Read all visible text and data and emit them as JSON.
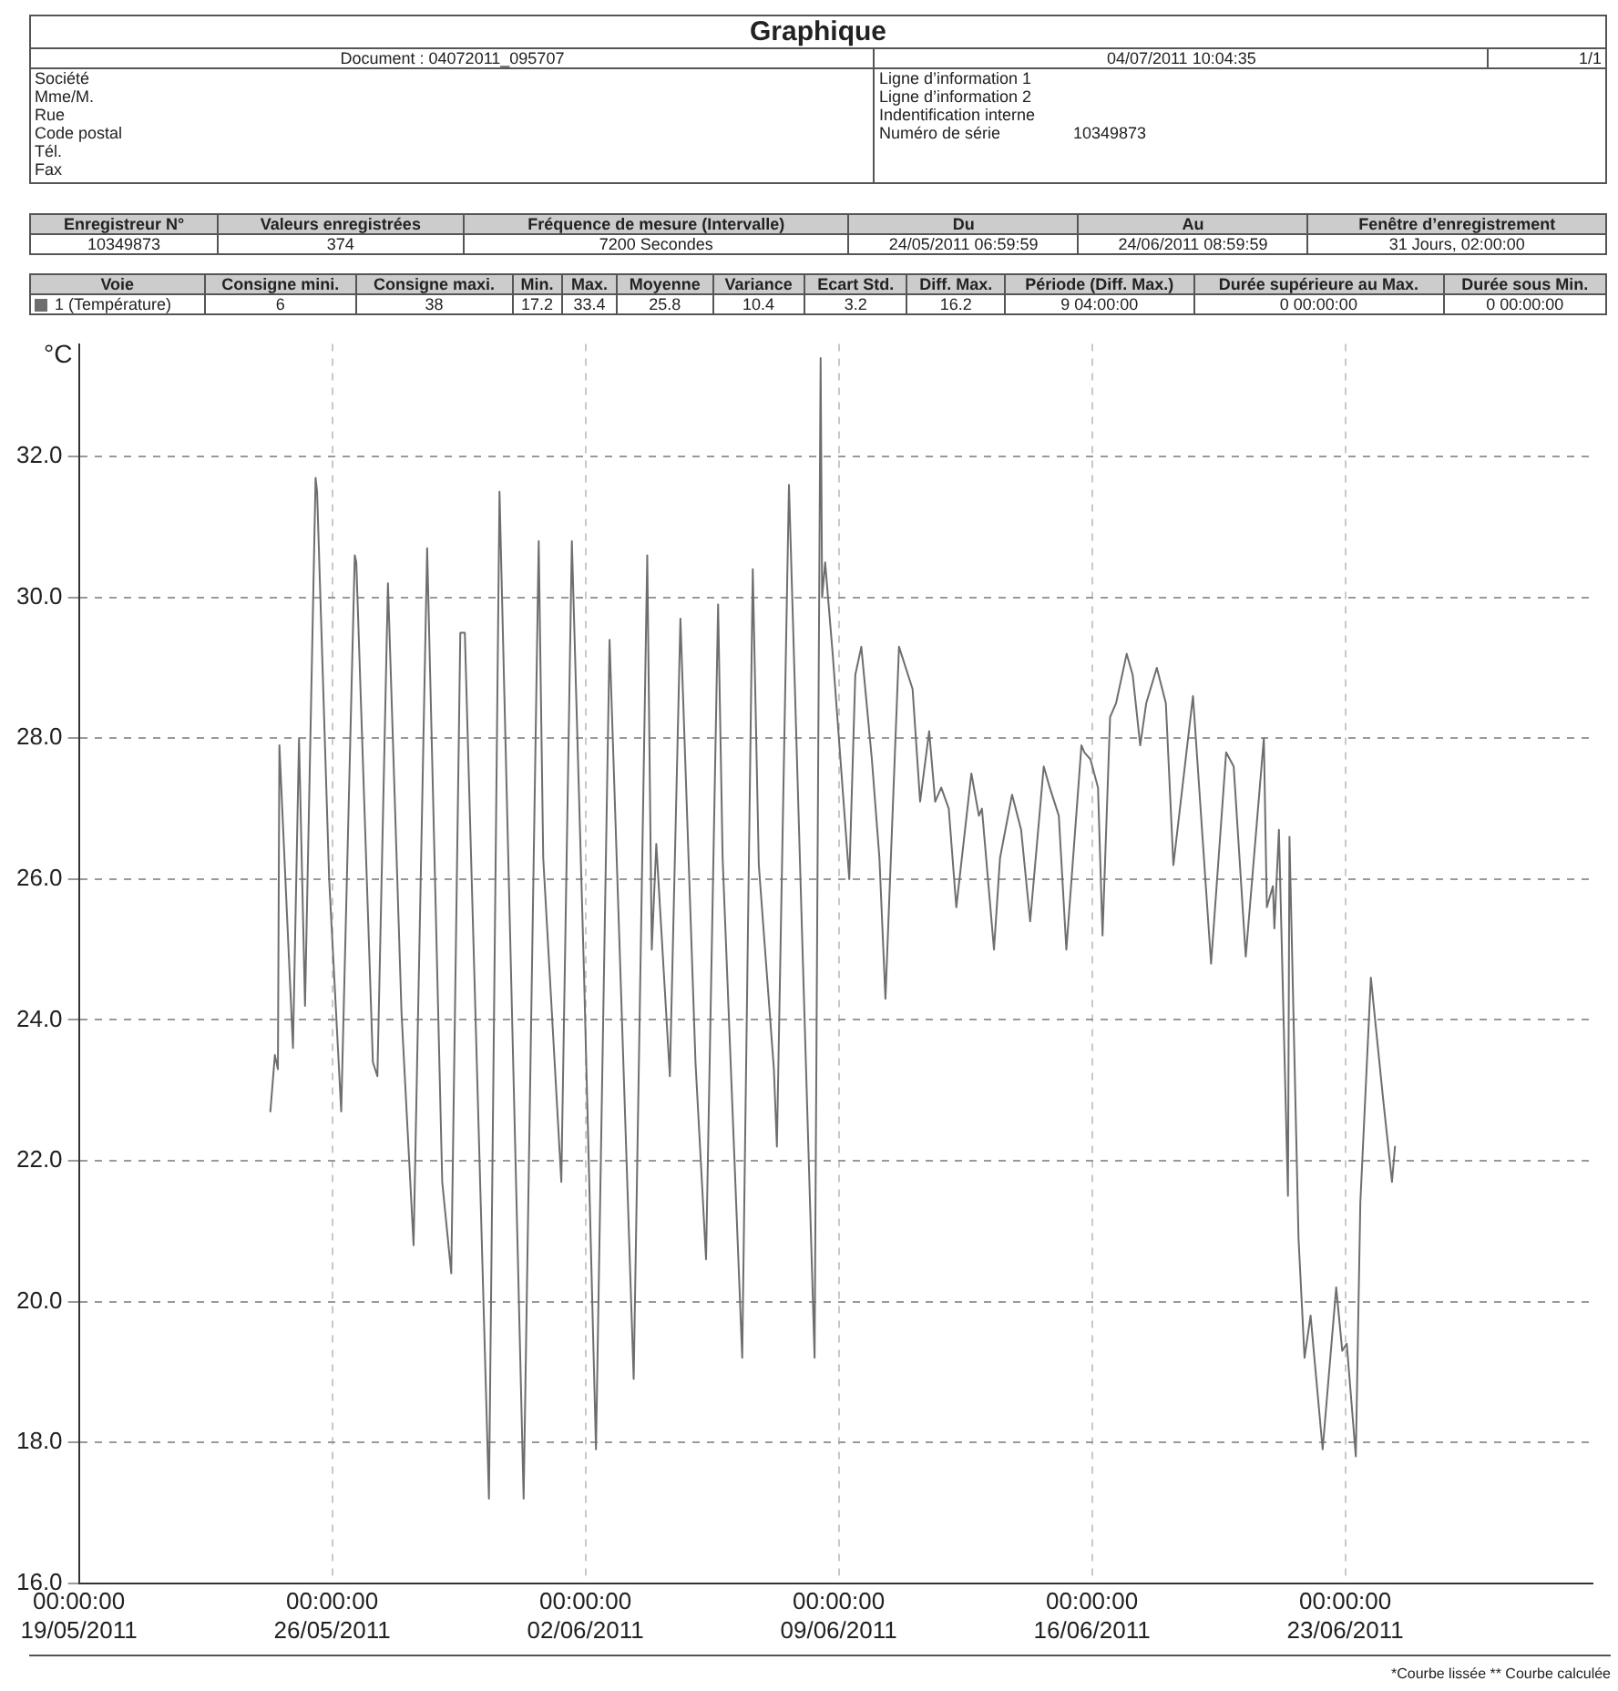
{
  "chart_data": {
    "type": "line",
    "title": "Graphique",
    "ylabel": "°C",
    "color": "#6e6e6e",
    "grid": true,
    "marker": "none",
    "xlim": [
      "2011-05-19",
      "2011-06-29T20:00"
    ],
    "xticks": [
      {
        "value": "2011-05-19",
        "label": "00:00:00 19/05/2011"
      },
      {
        "value": "2011-05-26",
        "label": "00:00:00 26/05/2011"
      },
      {
        "value": "2011-06-02",
        "label": "00:00:00 02/06/2011"
      },
      {
        "value": "2011-06-09",
        "label": "00:00:00 09/06/2011"
      },
      {
        "value": "2011-06-16",
        "label": "00:00:00 16/06/2011"
      },
      {
        "value": "2011-06-23",
        "label": "00:00:00 23/06/2011"
      }
    ],
    "ylim": [
      16,
      33.6
    ],
    "yticks": [
      {
        "value": 16,
        "label": "16.0"
      },
      {
        "value": 18,
        "label": "18.0"
      },
      {
        "value": 20,
        "label": "20.0"
      },
      {
        "value": 22,
        "label": "22.0"
      },
      {
        "value": 24,
        "label": "24.0"
      },
      {
        "value": 26,
        "label": "26.0"
      },
      {
        "value": 28,
        "label": "28.0"
      },
      {
        "value": 30,
        "label": "30.0"
      },
      {
        "value": 32,
        "label": "32.0"
      }
    ],
    "x": [
      "2011-05-24T07:00",
      "2011-05-24T10:00",
      "2011-05-24T12:00",
      "2011-05-24T13:00",
      "2011-05-24T22:00",
      "2011-05-25T02:00",
      "2011-05-25T06:00",
      "2011-05-25T13:00",
      "2011-05-25T14:00",
      "2011-05-25T22:00",
      "2011-05-26T06:00",
      "2011-05-26T15:00",
      "2011-05-26T16:00",
      "2011-05-27T03:00",
      "2011-05-27T06:00",
      "2011-05-27T13:00",
      "2011-05-27T22:00",
      "2011-05-28T06:00",
      "2011-05-28T15:00",
      "2011-05-29T01:00",
      "2011-05-29T07:00",
      "2011-05-29T13:00",
      "2011-05-29T16:00",
      "2011-05-30T08:00",
      "2011-05-30T15:00",
      "2011-05-31T07:00",
      "2011-05-31T17:00",
      "2011-05-31T20:00",
      "2011-06-01T08:00",
      "2011-06-01T15:00",
      "2011-06-01T23:00",
      "2011-06-02T07:00",
      "2011-06-02T16:00",
      "2011-06-03T08:00",
      "2011-06-03T17:00",
      "2011-06-03T20:00",
      "2011-06-03T23:00",
      "2011-06-04T08:00",
      "2011-06-04T15:00",
      "2011-06-05T01:00",
      "2011-06-05T08:00",
      "2011-06-05T16:00",
      "2011-06-05T19:00",
      "2011-06-06T08:00",
      "2011-06-06T15:00",
      "2011-06-06T19:00",
      "2011-06-07T05:00",
      "2011-06-07T07:00",
      "2011-06-07T15:00",
      "2011-06-08T00:00",
      "2011-06-08T08:00",
      "2011-06-08T12:00",
      "2011-06-08T13:00",
      "2011-06-08T15:00",
      "2011-06-08T20:00",
      "2011-06-09T07:00",
      "2011-06-09T11:00",
      "2011-06-09T15:00",
      "2011-06-09T22:00",
      "2011-06-10T03:00",
      "2011-06-10T07:00",
      "2011-06-10T16:00",
      "2011-06-11T01:00",
      "2011-06-11T06:00",
      "2011-06-11T12:00",
      "2011-06-11T16:00",
      "2011-06-11T20:00",
      "2011-06-12T01:00",
      "2011-06-12T06:00",
      "2011-06-12T16:00",
      "2011-06-12T21:00",
      "2011-06-12T23:00",
      "2011-06-13T07:00",
      "2011-06-13T11:00",
      "2011-06-13T19:00",
      "2011-06-14T01:00",
      "2011-06-14T07:00",
      "2011-06-14T16:00",
      "2011-06-14T20:00",
      "2011-06-15T02:00",
      "2011-06-15T07:00",
      "2011-06-15T17:00",
      "2011-06-15T19:00",
      "2011-06-15T23:00",
      "2011-06-16T04:00",
      "2011-06-16T07:00",
      "2011-06-16T12:00",
      "2011-06-16T16:00",
      "2011-06-16T23:00",
      "2011-06-17T03:00",
      "2011-06-17T08:00",
      "2011-06-17T12:00",
      "2011-06-17T19:00",
      "2011-06-18T01:00",
      "2011-06-18T06:00",
      "2011-06-18T19:00",
      "2011-06-19T07:00",
      "2011-06-19T17:00",
      "2011-06-19T22:00",
      "2011-06-20T06:00",
      "2011-06-20T18:00",
      "2011-06-20T20:00",
      "2011-06-21T00:00",
      "2011-06-21T01:00",
      "2011-06-21T04:00",
      "2011-06-21T10:00",
      "2011-06-21T11:00",
      "2011-06-21T17:00",
      "2011-06-21T21:00",
      "2011-06-22T01:00",
      "2011-06-22T09:00",
      "2011-06-22T18:00",
      "2011-06-22T22:00",
      "2011-06-23T01:00",
      "2011-06-23T07:00",
      "2011-06-23T10:00",
      "2011-06-23T17:00",
      "2011-06-24T01:00",
      "2011-06-24T07:00",
      "2011-06-24T09:00"
    ],
    "values": [
      22.7,
      23.5,
      23.3,
      27.9,
      23.6,
      28.0,
      24.2,
      31.7,
      31.5,
      26.0,
      22.7,
      30.6,
      30.5,
      23.4,
      23.2,
      30.2,
      24.1,
      20.8,
      30.7,
      21.7,
      20.4,
      29.5,
      29.5,
      17.2,
      31.5,
      17.2,
      30.8,
      26.3,
      21.7,
      30.8,
      24.7,
      17.9,
      29.4,
      18.9,
      30.6,
      25.0,
      26.5,
      23.2,
      29.7,
      23.4,
      20.6,
      29.9,
      26.3,
      19.2,
      30.4,
      26.2,
      23.3,
      22.2,
      31.6,
      25.0,
      19.2,
      33.4,
      30.0,
      30.5,
      29.2,
      26.0,
      28.9,
      29.3,
      27.7,
      26.3,
      24.3,
      29.3,
      28.7,
      27.1,
      28.1,
      27.1,
      27.3,
      27.0,
      25.6,
      27.5,
      26.9,
      27.0,
      25.0,
      26.3,
      27.2,
      26.7,
      25.4,
      27.6,
      27.3,
      26.9,
      25.0,
      27.9,
      27.8,
      27.7,
      27.3,
      25.2,
      28.3,
      28.5,
      29.2,
      28.9,
      27.9,
      28.5,
      29.0,
      28.5,
      26.2,
      28.6,
      24.8,
      27.8,
      27.6,
      24.9,
      28.0,
      25.6,
      25.9,
      25.3,
      26.7,
      21.5,
      26.6,
      20.9,
      19.2,
      19.8,
      17.9,
      20.2,
      19.3,
      19.4,
      17.8,
      21.4,
      24.6,
      22.9,
      21.7,
      22.2
    ],
    "annotations": [
      "Document : 04072011_095707",
      "04/07/2011 10:04:35",
      "1/1",
      "Société",
      "Mme/M.",
      "Rue",
      "Code postal",
      "Tél.",
      "Fax",
      "Ligne d’information 1",
      "Ligne d’information 2",
      "Indentification interne",
      "Numéro de série",
      "10349873",
      "Enregistreur N°",
      "Valeurs enregistrées",
      "Fréquence de mesure (Intervalle)",
      "Du",
      "Au",
      "Fenêtre d’enregistrement",
      "10349873",
      "374",
      "7200 Secondes",
      "24/05/2011 06:59:59",
      "24/06/2011 08:59:59",
      "31 Jours, 02:00:00",
      "Voie",
      "Consigne mini.",
      "Consigne maxi.",
      "Min.",
      "Max.",
      "Moyenne",
      "Variance",
      "Ecart Std.",
      "Diff. Max.",
      "Période (Diff. Max.)",
      "Durée supérieure au Max.",
      "Durée sous Min.",
      "1 (Température)",
      "6",
      "38",
      "17.2",
      "33.4",
      "25.8",
      "10.4",
      "3.2",
      "16.2",
      "9 04:00:00",
      "0 00:00:00",
      "0 00:00:00",
      "*Courbe lissée  ** Courbe calculée"
    ]
  }
}
